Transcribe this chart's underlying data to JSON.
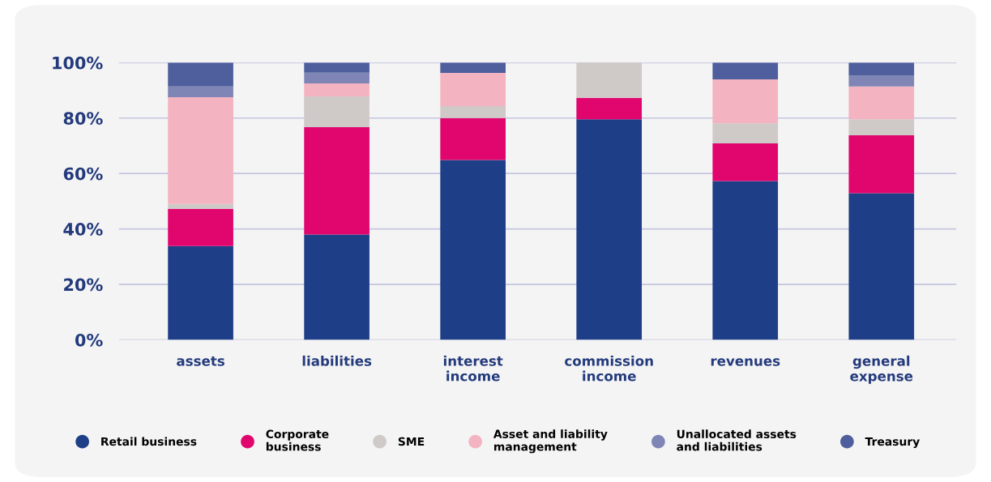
{
  "chart_data": {
    "type": "bar",
    "stacked": true,
    "categories": [
      "assets",
      "liabilities",
      "interest\nincome",
      "commission\nincome",
      "revenues",
      "general\nexpense"
    ],
    "series": [
      {
        "name": "Retail business",
        "color": "#1e3f87",
        "values": [
          33.8,
          38,
          64.9,
          79.6,
          57.3,
          52.9
        ]
      },
      {
        "name": "Corporate\nbusiness",
        "color": "#e0066e",
        "values": [
          13.5,
          38.7,
          15.1,
          7.7,
          13.6,
          20.9
        ]
      },
      {
        "name": "SME",
        "color": "#cfc9c8",
        "values": [
          1.7,
          11.1,
          4.3,
          12.7,
          7.2,
          5.8
        ]
      },
      {
        "name": "Asset and liability\nmanagement",
        "color": "#f4b3c0",
        "values": [
          38.5,
          4.7,
          12,
          0,
          15.9,
          11.8
        ]
      },
      {
        "name": "Unallocated assets\nand liabilities",
        "color": "#7f86b6",
        "values": [
          3.9,
          3.9,
          0,
          0,
          0,
          3.9
        ]
      },
      {
        "name": "Treasury",
        "color": "#4f5f9d",
        "values": [
          8.6,
          3.6,
          3.7,
          0,
          6,
          4.7
        ]
      }
    ],
    "ylim": [
      0,
      100
    ],
    "yticks": [
      {
        "value": 0,
        "label": "0%"
      },
      {
        "value": 20,
        "label": "20%"
      },
      {
        "value": 40,
        "label": "40%"
      },
      {
        "value": 60,
        "label": "60%"
      },
      {
        "value": 80,
        "label": "80%"
      },
      {
        "value": 100,
        "label": "100%"
      }
    ],
    "grid": "y",
    "legend": "bottom"
  }
}
